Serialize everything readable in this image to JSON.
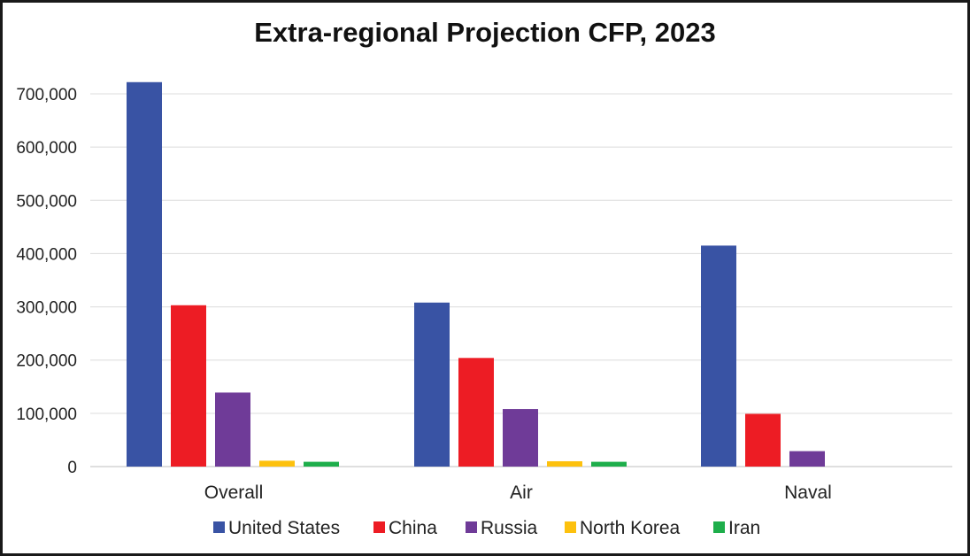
{
  "chart_data": {
    "type": "bar",
    "title": "Extra-regional Projection CFP, 2023",
    "xlabel": "",
    "ylabel": "",
    "categories": [
      "Overall",
      "Air",
      "Naval"
    ],
    "series": [
      {
        "name": "United States",
        "color": "#3953a4",
        "values": [
          722000,
          308000,
          415000
        ]
      },
      {
        "name": "China",
        "color": "#ed1c24",
        "values": [
          303000,
          204000,
          99000
        ]
      },
      {
        "name": "Russia",
        "color": "#6f3b98",
        "values": [
          139000,
          108000,
          29000
        ]
      },
      {
        "name": "North Korea",
        "color": "#fdc10e",
        "values": [
          11000,
          10000,
          0
        ]
      },
      {
        "name": "Iran",
        "color": "#1eae4b",
        "values": [
          9000,
          9000,
          0
        ]
      }
    ],
    "ylim": [
      0,
      700000
    ],
    "yticks": [
      0,
      100000,
      200000,
      300000,
      400000,
      500000,
      600000,
      700000
    ],
    "ytick_labels": [
      "0",
      "100,000",
      "200,000",
      "300,000",
      "400,000",
      "500,000",
      "600,000",
      "700,000"
    ],
    "grid": true,
    "legend_position": "bottom"
  }
}
